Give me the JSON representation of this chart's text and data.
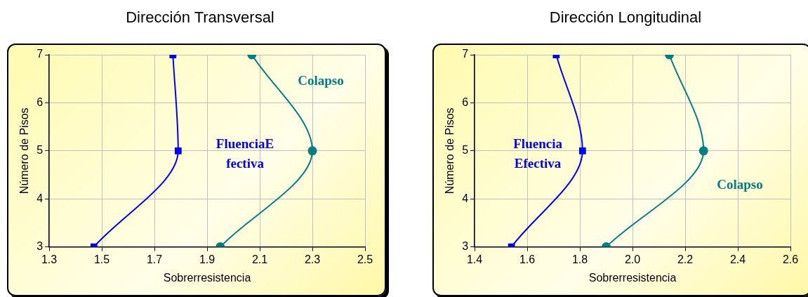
{
  "chart_data": [
    {
      "type": "line",
      "title": "Dirección Transversal",
      "xlabel": "Sobrerresistencia",
      "ylabel": "Número de Pisos",
      "xlim": [
        1.3,
        2.5
      ],
      "xticks": [
        1.3,
        1.5,
        1.7,
        1.9,
        2.1,
        2.3,
        2.5
      ],
      "ylim": [
        3,
        7
      ],
      "yticks": [
        3,
        4,
        5,
        6,
        7
      ],
      "grid": true,
      "legend": false,
      "series": [
        {
          "name": "FluenciaE fectiva",
          "color": "#0000ff",
          "marker": "square",
          "x": [
            1.77,
            1.79,
            1.47
          ],
          "values": [
            7,
            5,
            3
          ]
        },
        {
          "name": "Colapso",
          "color": "#008080",
          "marker": "circle",
          "x": [
            2.07,
            2.3,
            1.95
          ],
          "values": [
            7,
            5,
            3
          ]
        }
      ]
    },
    {
      "type": "line",
      "title": "Dirección Longitudinal",
      "xlabel": "Sobrerresistencia",
      "ylabel": "Número de Pisos",
      "xlim": [
        1.4,
        2.6
      ],
      "xticks": [
        {
          "value": 1.4,
          "label": "1.4"
        },
        {
          "value": 1.6,
          "label": "1.6"
        },
        {
          "value": 1.8,
          "label": "1.8"
        },
        {
          "value": 2.0,
          "label": "2.0"
        },
        {
          "value": 2.2,
          "label": "2.2"
        },
        {
          "value": 2.4,
          "label": "2.4"
        },
        {
          "value": 2.6,
          "label": "2.6"
        }
      ],
      "ylim": [
        3,
        7
      ],
      "yticks": [
        3,
        4,
        5,
        6,
        7
      ],
      "grid": true,
      "legend": false,
      "series": [
        {
          "name": "Fluencia Efectiva",
          "color": "#0000ff",
          "marker": "square",
          "x": [
            1.71,
            1.81,
            1.54
          ],
          "values": [
            7,
            5,
            3
          ]
        },
        {
          "name": "Colapso",
          "color": "#008080",
          "marker": "circle",
          "x": [
            2.14,
            2.27,
            1.9
          ],
          "values": [
            7,
            5,
            3
          ]
        }
      ]
    }
  ]
}
